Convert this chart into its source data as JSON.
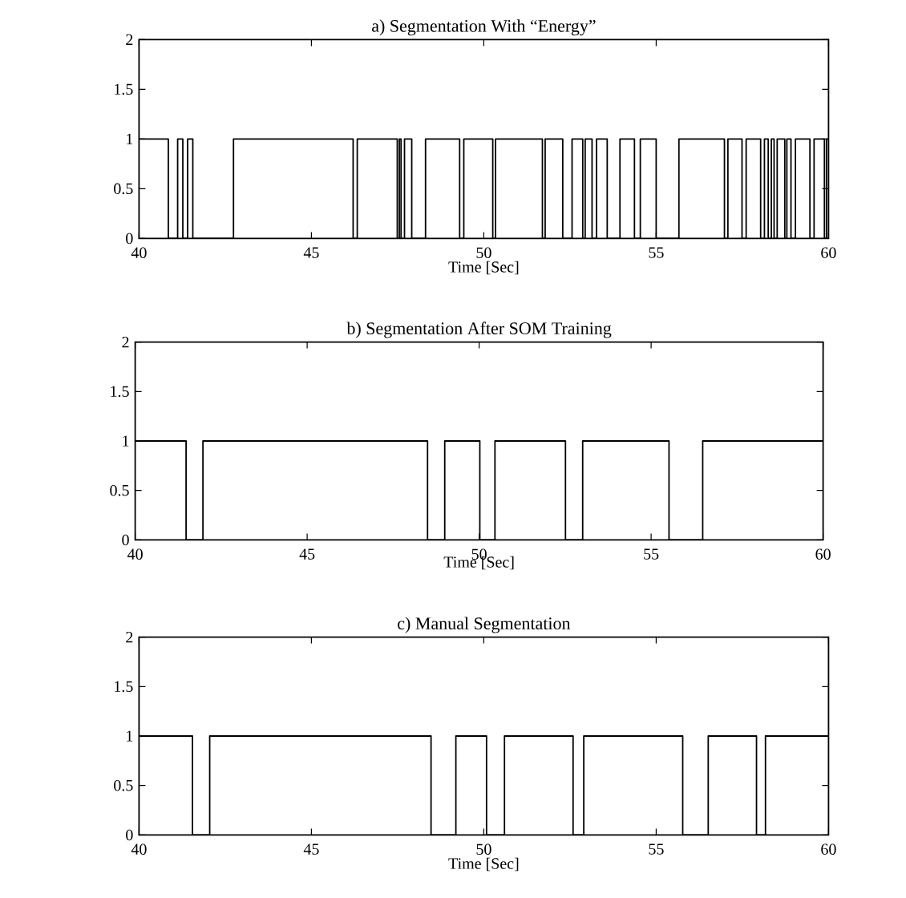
{
  "chart_data": [
    {
      "type": "step",
      "title": "a) Segmentation With “Energy”",
      "xlabel": "Time [Sec]",
      "xlim": [
        40,
        60
      ],
      "ylim": [
        0,
        2
      ],
      "xticks": [
        40,
        45,
        50,
        55,
        60
      ],
      "yticks": [
        0,
        0.5,
        1,
        1.5,
        2
      ],
      "color": "#000000",
      "x": [
        40,
        40.85,
        41.12,
        41.27,
        41.41,
        41.56,
        42.74,
        46.21,
        46.33,
        47.49,
        47.55,
        47.6,
        47.7,
        47.91,
        48.31,
        49.3,
        49.42,
        50.26,
        50.34,
        51.7,
        51.78,
        52.29,
        52.56,
        52.87,
        52.94,
        53.14,
        53.27,
        53.58,
        53.95,
        54.37,
        54.54,
        55.0,
        55.66,
        56.98,
        57.08,
        57.49,
        57.61,
        58.03,
        58.14,
        58.25,
        58.34,
        58.42,
        58.51,
        58.73,
        58.79,
        58.91,
        59.04,
        59.46,
        59.58,
        59.88,
        59.94,
        60
      ],
      "values": [
        1,
        0,
        1,
        0,
        1,
        0,
        1,
        0,
        1,
        0,
        1,
        0,
        1,
        0,
        1,
        0,
        1,
        0,
        1,
        0,
        1,
        0,
        1,
        0,
        1,
        0,
        1,
        0,
        1,
        0,
        1,
        0,
        1,
        0,
        1,
        0,
        1,
        0,
        1,
        0,
        1,
        0,
        1,
        0,
        1,
        0,
        1,
        0,
        1,
        0,
        1,
        1
      ]
    },
    {
      "type": "step",
      "title": "b) Segmentation After SOM Training",
      "xlabel": "Time [Sec]",
      "xlim": [
        40,
        60
      ],
      "ylim": [
        0,
        2
      ],
      "xticks": [
        40,
        45,
        50,
        55,
        60
      ],
      "yticks": [
        0,
        0.5,
        1,
        1.5,
        2
      ],
      "color": "#000000",
      "x": [
        40,
        41.48,
        41.97,
        48.5,
        49.0,
        50.02,
        50.46,
        52.51,
        53.01,
        55.52,
        56.5,
        60
      ],
      "values": [
        1,
        0,
        1,
        0,
        1,
        0,
        1,
        0,
        1,
        0,
        1,
        1
      ]
    },
    {
      "type": "step",
      "title": "c) Manual Segmentation",
      "xlabel": "Time [Sec]",
      "xlim": [
        40,
        60
      ],
      "ylim": [
        0,
        2
      ],
      "xticks": [
        40,
        45,
        50,
        55,
        60
      ],
      "yticks": [
        0,
        0.5,
        1,
        1.5,
        2
      ],
      "color": "#000000",
      "x": [
        40,
        41.55,
        42.05,
        48.47,
        49.19,
        50.08,
        50.6,
        52.59,
        52.9,
        55.77,
        56.51,
        57.91,
        58.17,
        60
      ],
      "values": [
        1,
        0,
        1,
        0,
        1,
        0,
        1,
        0,
        1,
        0,
        1,
        0,
        1,
        1
      ]
    }
  ]
}
